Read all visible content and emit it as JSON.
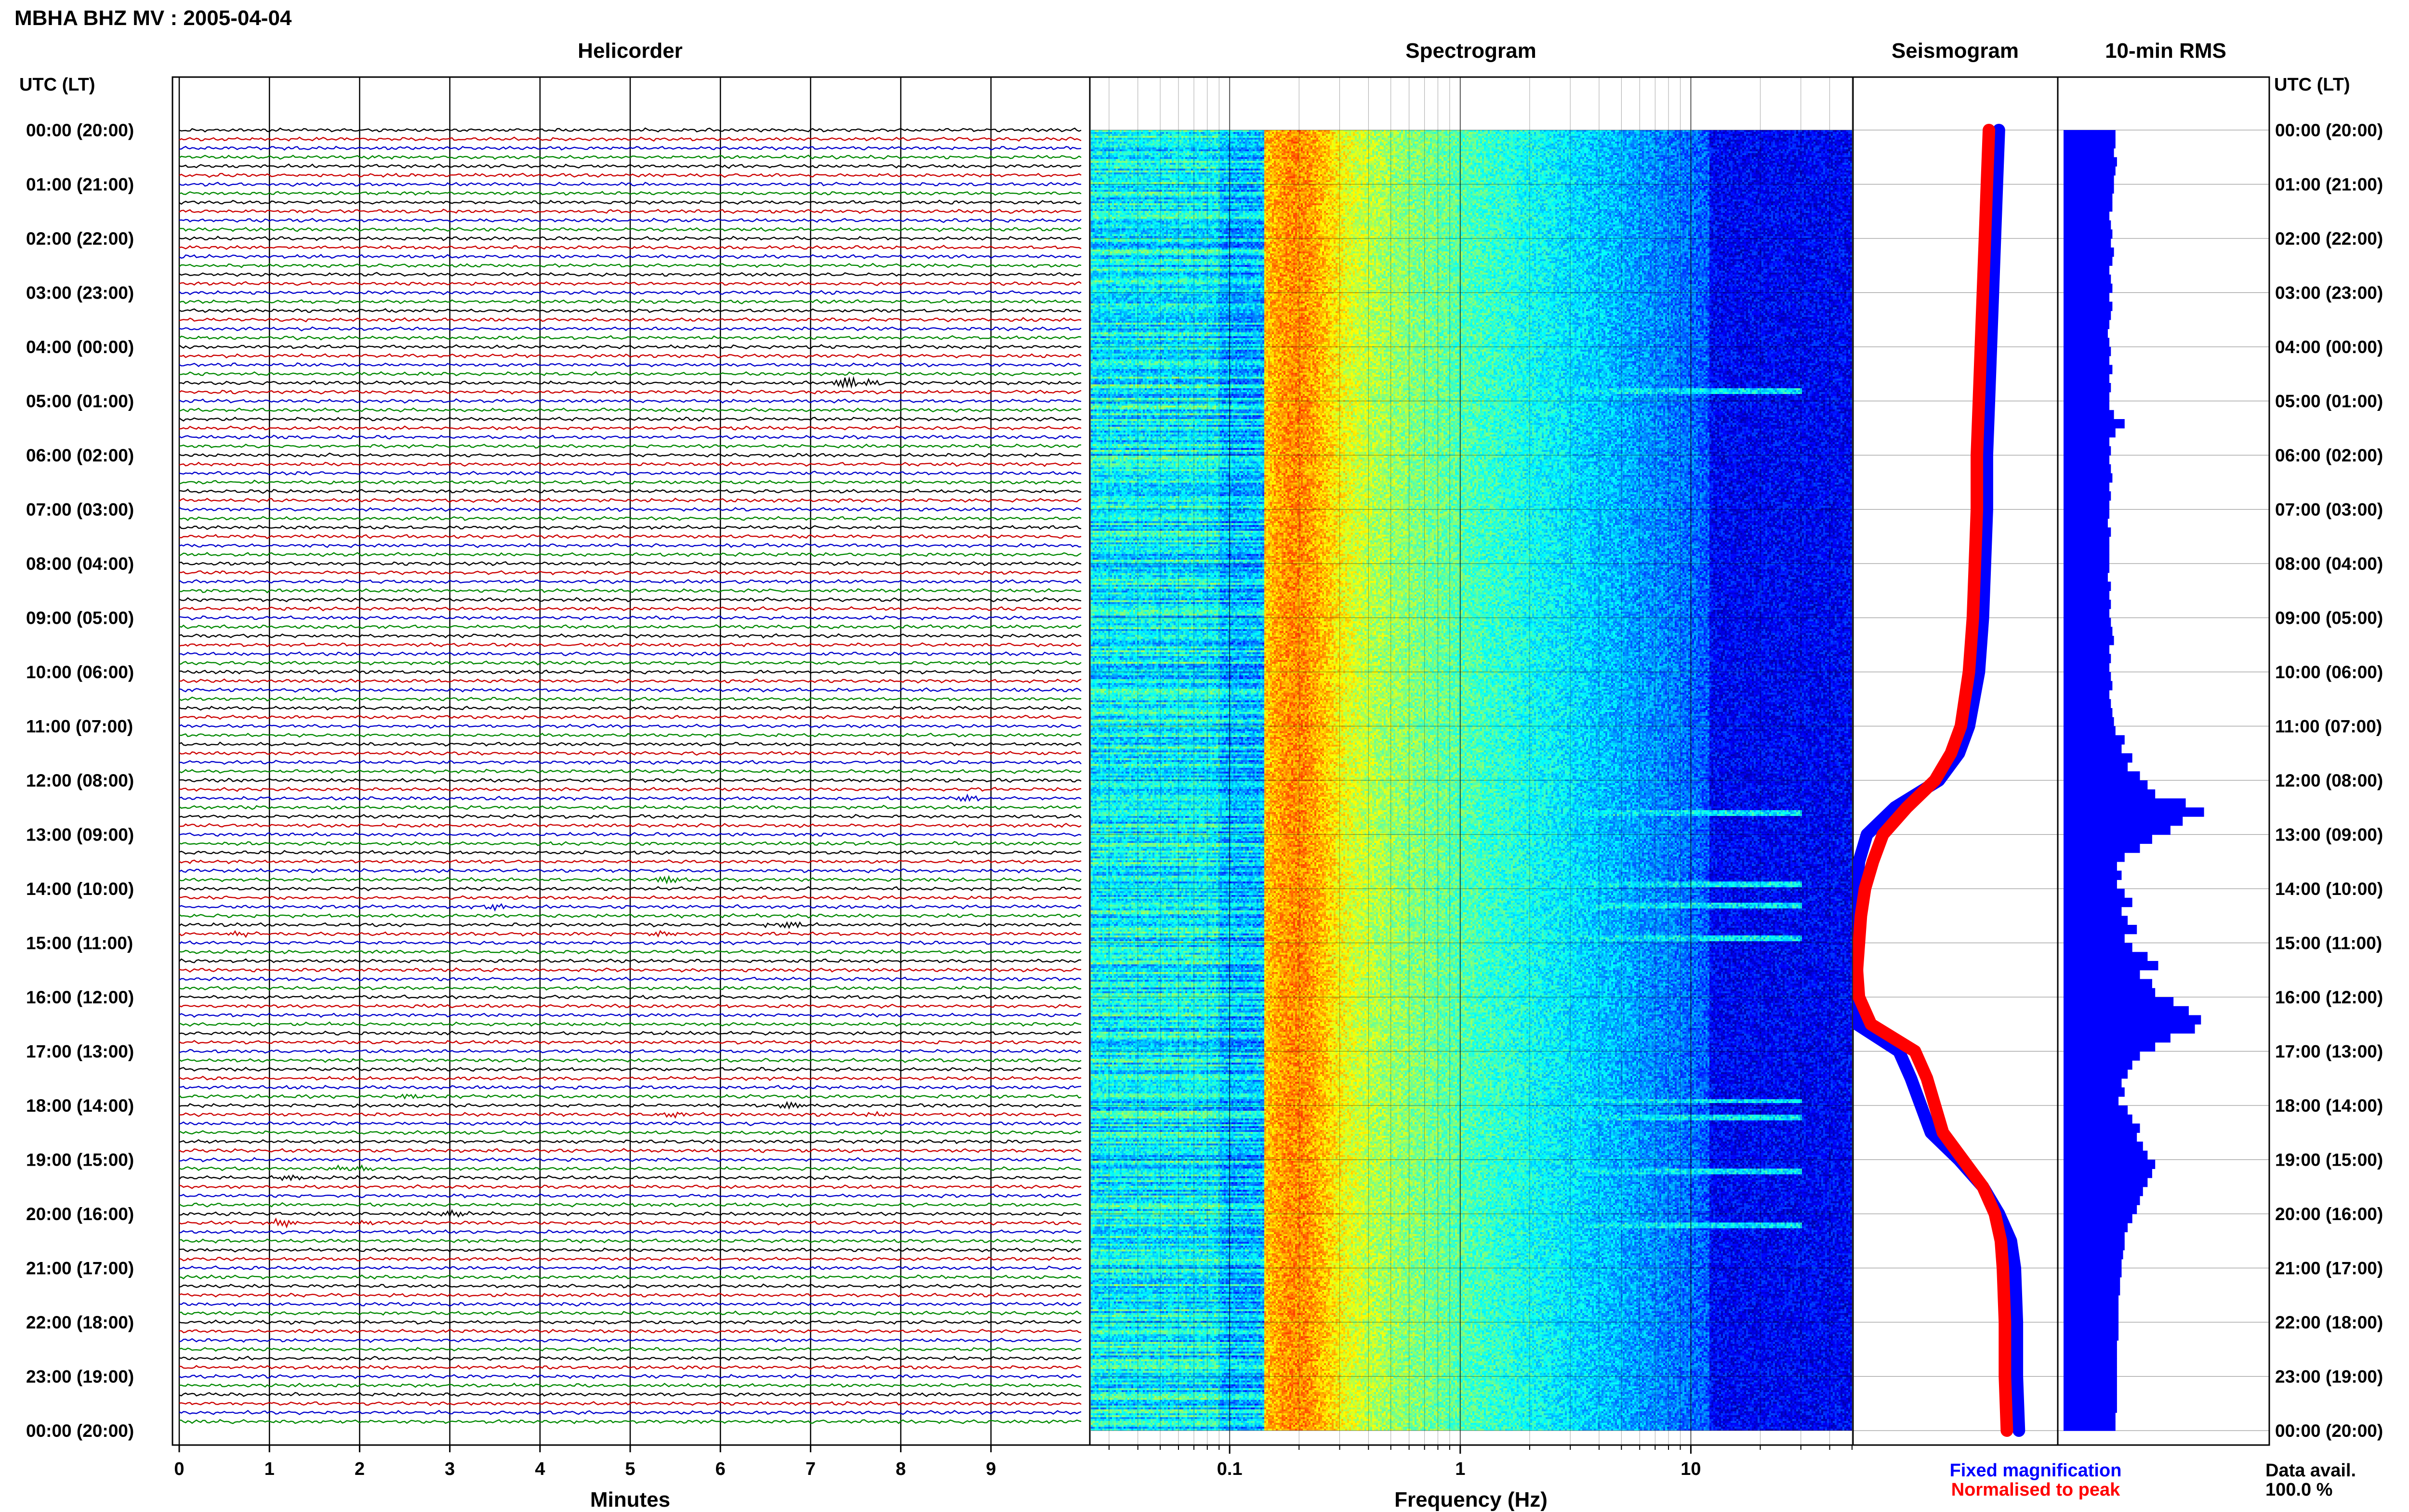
{
  "header": {
    "station_title": "MBHA BHZ MV : 2005-04-04",
    "panel_titles": {
      "helicorder": "Helicorder",
      "spectrogram": "Spectrogram",
      "seismogram": "Seismogram",
      "rms": "10-min RMS"
    },
    "time_axis_label_left": "UTC (LT)",
    "time_axis_label_right": "UTC (LT)"
  },
  "legend": {
    "fixed": "Fixed magnification",
    "normalised": "Normalised to peak"
  },
  "data_availability": {
    "label": "Data avail.",
    "value": "100.0 %"
  },
  "colors": {
    "trace_cycle": [
      "#000000",
      "#cc0000",
      "#0000cc",
      "#008800"
    ],
    "fixed_magnification": "#0000ff",
    "normalised_to_peak": "#ff0000",
    "rms_bar": "#0000ff",
    "spectrogram_colormap": "jet",
    "grid": "#000000"
  },
  "chart_data": [
    {
      "type": "line",
      "name": "helicorder",
      "title": "Helicorder",
      "xlabel": "Minutes",
      "ylabel": "UTC (LT)",
      "xlim": [
        0,
        10
      ],
      "x_ticks": [
        "0",
        "1",
        "2",
        "3",
        "4",
        "5",
        "6",
        "7",
        "8",
        "9"
      ],
      "time_ticks": [
        "00:00 (20:00)",
        "01:00 (21:00)",
        "02:00 (22:00)",
        "03:00 (23:00)",
        "04:00 (00:00)",
        "05:00 (01:00)",
        "06:00 (02:00)",
        "07:00 (03:00)",
        "08:00 (04:00)",
        "09:00 (05:00)",
        "10:00 (06:00)",
        "11:00 (07:00)",
        "12:00 (08:00)",
        "13:00 (09:00)",
        "14:00 (10:00)",
        "15:00 (11:00)",
        "16:00 (12:00)",
        "17:00 (13:00)",
        "18:00 (14:00)",
        "19:00 (15:00)",
        "20:00 (16:00)",
        "21:00 (17:00)",
        "22:00 (18:00)",
        "23:00 (19:00)",
        "00:00 (20:00)"
      ],
      "lines_per_hour": 6,
      "grid": true,
      "events": [
        {
          "time_hours": 4.67,
          "minute": 7.5,
          "amplitude": 3.0
        },
        {
          "time_hours": 12.33,
          "minute": 8.7,
          "amplitude": 1.0
        },
        {
          "time_hours": 13.83,
          "minute": 5.4,
          "amplitude": 1.2
        },
        {
          "time_hours": 14.33,
          "minute": 3.5,
          "amplitude": 0.8
        },
        {
          "time_hours": 14.67,
          "minute": 6.7,
          "amplitude": 1.5
        },
        {
          "time_hours": 14.83,
          "minute": 5.3,
          "amplitude": 1.0
        },
        {
          "time_hours": 14.83,
          "minute": 0.6,
          "amplitude": 0.9
        },
        {
          "time_hours": 17.83,
          "minute": 2.5,
          "amplitude": 0.8
        },
        {
          "time_hours": 18.0,
          "minute": 6.7,
          "amplitude": 1.4
        },
        {
          "time_hours": 18.17,
          "minute": 5.5,
          "amplitude": 0.8
        },
        {
          "time_hours": 18.17,
          "minute": 7.6,
          "amplitude": 0.8
        },
        {
          "time_hours": 19.17,
          "minute": 1.9,
          "amplitude": 1.5
        },
        {
          "time_hours": 19.33,
          "minute": 1.3,
          "amplitude": 1.0
        },
        {
          "time_hours": 20.0,
          "minute": 3.0,
          "amplitude": 1.3
        },
        {
          "time_hours": 20.17,
          "minute": 1.1,
          "amplitude": 1.3
        },
        {
          "time_hours": 20.17,
          "minute": 2.0,
          "amplitude": 0.8
        }
      ]
    },
    {
      "type": "heatmap",
      "name": "spectrogram",
      "title": "Spectrogram",
      "xlabel": "Frequency (Hz)",
      "xscale": "log",
      "xlim": [
        0.025,
        50
      ],
      "x_ticks": [
        {
          "value": 0.1,
          "label": "0.1"
        },
        {
          "value": 1,
          "label": "1"
        },
        {
          "value": 10,
          "label": "10"
        }
      ],
      "ylim_hours": [
        0,
        24
      ],
      "colormap": "jet",
      "peak_frequency_hz": 0.2,
      "bright_band_hz": [
        0.14,
        0.4
      ],
      "high_freq_events_hours": [
        4.8,
        12.6,
        13.9,
        14.3,
        14.9,
        17.9,
        18.2,
        19.2,
        20.2
      ]
    },
    {
      "type": "line",
      "name": "seismogram",
      "title": "Seismogram",
      "y_hours": [
        0,
        1,
        2,
        3,
        4,
        5,
        6,
        7,
        8,
        9,
        10,
        11,
        11.5,
        12,
        12.5,
        13,
        13.5,
        14,
        14.5,
        15,
        15.5,
        16,
        16.5,
        17,
        17.5,
        18,
        18.5,
        19,
        19.5,
        20,
        20.5,
        21,
        22,
        23,
        24
      ],
      "series": [
        {
          "name": "Fixed magnification",
          "values": [
            0.72,
            0.71,
            0.7,
            0.69,
            0.68,
            0.67,
            0.66,
            0.66,
            0.65,
            0.64,
            0.62,
            0.57,
            0.52,
            0.42,
            0.2,
            0.06,
            0.02,
            0.01,
            0.02,
            0.01,
            0.01,
            0.01,
            0.01,
            0.22,
            0.28,
            0.33,
            0.38,
            0.52,
            0.64,
            0.72,
            0.78,
            0.8,
            0.81,
            0.81,
            0.82
          ]
        },
        {
          "name": "Normalised to peak",
          "values": [
            0.67,
            0.66,
            0.65,
            0.64,
            0.63,
            0.62,
            0.61,
            0.61,
            0.6,
            0.59,
            0.57,
            0.53,
            0.48,
            0.4,
            0.26,
            0.14,
            0.09,
            0.05,
            0.03,
            0.02,
            0.01,
            0.02,
            0.08,
            0.3,
            0.36,
            0.4,
            0.44,
            0.54,
            0.64,
            0.7,
            0.73,
            0.74,
            0.75,
            0.75,
            0.76
          ]
        }
      ]
    },
    {
      "type": "bar",
      "name": "rms",
      "title": "10-min RMS",
      "orientation": "horizontal",
      "bin_minutes": 10,
      "values": [
        0.34,
        0.34,
        0.33,
        0.35,
        0.34,
        0.33,
        0.33,
        0.32,
        0.32,
        0.3,
        0.31,
        0.32,
        0.31,
        0.33,
        0.32,
        0.3,
        0.31,
        0.32,
        0.3,
        0.32,
        0.31,
        0.3,
        0.29,
        0.3,
        0.31,
        0.3,
        0.32,
        0.3,
        0.31,
        0.3,
        0.3,
        0.33,
        0.4,
        0.34,
        0.3,
        0.31,
        0.3,
        0.31,
        0.32,
        0.3,
        0.31,
        0.3,
        0.3,
        0.29,
        0.31,
        0.3,
        0.3,
        0.3,
        0.3,
        0.29,
        0.31,
        0.3,
        0.31,
        0.3,
        0.31,
        0.32,
        0.33,
        0.3,
        0.31,
        0.3,
        0.31,
        0.32,
        0.3,
        0.31,
        0.32,
        0.33,
        0.34,
        0.4,
        0.38,
        0.45,
        0.42,
        0.5,
        0.55,
        0.6,
        0.8,
        0.92,
        0.78,
        0.7,
        0.58,
        0.5,
        0.4,
        0.35,
        0.38,
        0.35,
        0.4,
        0.45,
        0.38,
        0.42,
        0.48,
        0.4,
        0.45,
        0.55,
        0.62,
        0.5,
        0.58,
        0.6,
        0.72,
        0.82,
        0.9,
        0.86,
        0.7,
        0.6,
        0.5,
        0.45,
        0.42,
        0.38,
        0.4,
        0.36,
        0.42,
        0.45,
        0.5,
        0.48,
        0.52,
        0.55,
        0.6,
        0.58,
        0.55,
        0.52,
        0.5,
        0.48,
        0.45,
        0.42,
        0.4,
        0.4,
        0.39,
        0.38,
        0.38,
        0.37,
        0.37,
        0.36,
        0.36,
        0.36,
        0.36,
        0.36,
        0.35,
        0.35,
        0.35,
        0.35,
        0.35,
        0.35,
        0.35,
        0.35,
        0.34,
        0.34
      ]
    }
  ]
}
